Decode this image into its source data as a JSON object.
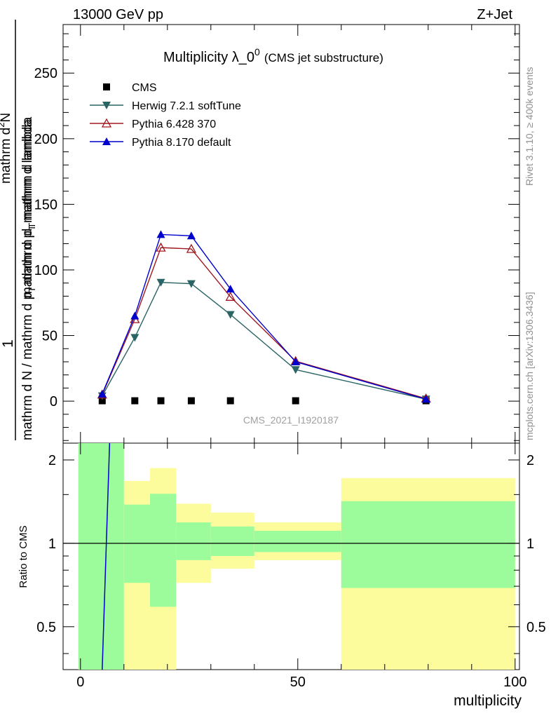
{
  "header": {
    "left": "13000 GeV pp",
    "right": "Z+Jet"
  },
  "side_labels": {
    "rivet": "Rivet 3.1.10, ≥ 400k events",
    "mcplots": "mcplots.cern.ch [arXiv:1306.3436]"
  },
  "chart_data": {
    "type": "line",
    "title_main": "Multiplicity λ_0",
    "title_sup": "0",
    "title_sub": "(CMS jet substructure)",
    "watermark": "CMS_2021_I1920187",
    "xlabel": "multiplicity",
    "ylabel_line1": "mathrm d N / mathrm d p",
    "ylabel_line2": "mathrm d",
    "ylabel_sub1": "T",
    "ylabel_line3": "mathrm d lambda",
    "ylabel_sub2": "T",
    "ylabel_top1": "mathrm d",
    "ylabel_sup": "2",
    "ylabel_top2": "N",
    "ylabel_top3": "mathrm d p",
    "ylabel_top4": "mathrm d lambda",
    "ylabel_one": "1",
    "ratio_ylabel": "Ratio to CMS",
    "xlim": [
      -4,
      101
    ],
    "ylim": [
      -32,
      287
    ],
    "ratio_ylim": [
      0.35,
      2.3
    ],
    "x_ticks": [
      "0",
      "50",
      "100"
    ],
    "y_ticks": [
      "0",
      "50",
      "100",
      "150",
      "200",
      "250"
    ],
    "ratio_ticks": [
      "0.5",
      "1",
      "2"
    ],
    "x": [
      5,
      12.5,
      18.5,
      25.5,
      34.5,
      49.5,
      79.5
    ],
    "series": [
      {
        "name": "CMS",
        "color": "#000000",
        "marker": "square",
        "values": [
          0.3,
          0.3,
          0.3,
          0.3,
          0.3,
          0.3,
          0.3
        ]
      },
      {
        "name": "Herwig 7.2.1 softTune",
        "color": "#2a6464",
        "marker": "tri-down",
        "values": [
          4,
          48.5,
          90.5,
          89.5,
          66,
          24,
          1.5
        ]
      },
      {
        "name": "Pythia 6.428 370",
        "color": "#a01820",
        "marker": "tri-up-open",
        "values": [
          5,
          62.5,
          117,
          116,
          79.5,
          30.5,
          2
        ]
      },
      {
        "name": "Pythia 8.170 default",
        "color": "#0000cc",
        "marker": "tri-up",
        "values": [
          5.5,
          65,
          127,
          126,
          85.5,
          30,
          1.5
        ]
      }
    ],
    "ratio_bands": [
      {
        "x0": -0.5,
        "x1": 10,
        "g_lo": 0.35,
        "g_hi": 2.3,
        "y_lo": 0.35,
        "y_hi": 2.3
      },
      {
        "x0": 10,
        "x1": 16,
        "g_lo": 0.72,
        "g_hi": 1.38,
        "y_lo": 0.35,
        "y_hi": 1.68
      },
      {
        "x0": 16,
        "x1": 22,
        "g_lo": 0.59,
        "g_hi": 1.51,
        "y_lo": 0.35,
        "y_hi": 1.87
      },
      {
        "x0": 22,
        "x1": 30,
        "g_lo": 0.87,
        "g_hi": 1.19,
        "y_lo": 0.72,
        "y_hi": 1.39
      },
      {
        "x0": 30,
        "x1": 40,
        "g_lo": 0.9,
        "g_hi": 1.15,
        "y_lo": 0.81,
        "y_hi": 1.29
      },
      {
        "x0": 40,
        "x1": 60,
        "g_lo": 0.93,
        "g_hi": 1.11,
        "y_lo": 0.87,
        "y_hi": 1.19
      },
      {
        "x0": 60,
        "x1": 100,
        "g_lo": 0.69,
        "g_hi": 1.42,
        "y_lo": 0.35,
        "y_hi": 1.72
      }
    ],
    "ratio_line": {
      "name": "Pythia 8.170 default",
      "color": "#0000cc",
      "points": [
        [
          5,
          0.35
        ],
        [
          6.7,
          2.3
        ]
      ]
    },
    "band_colors": {
      "green": "#9cfc9c",
      "yellow": "#fcfc9c"
    }
  }
}
